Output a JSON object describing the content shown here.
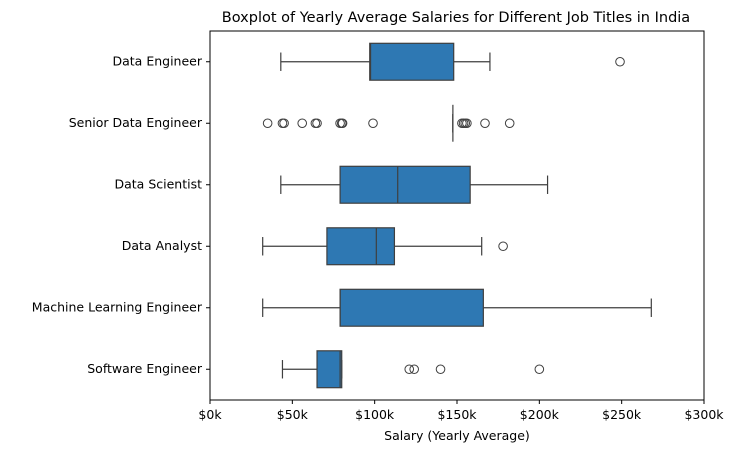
{
  "chart_data": {
    "type": "boxplot",
    "orientation": "horizontal",
    "title": "Boxplot of Yearly Average Salaries for Different Job Titles in India",
    "xlabel": "Salary (Yearly Average)",
    "ylabel": "",
    "xlim": [
      0,
      300000
    ],
    "x_ticks": [
      0,
      50000,
      100000,
      150000,
      200000,
      250000,
      300000
    ],
    "x_tick_labels": [
      "$0k",
      "$50k",
      "$100k",
      "$150k",
      "$200k",
      "$250k",
      "$300k"
    ],
    "grid": false,
    "box_color": "#2e78b3",
    "line_color": "#3f3f3f",
    "categories": [
      "Data Engineer",
      "Senior Data Engineer",
      "Data Scientist",
      "Data Analyst",
      "Machine Learning Engineer",
      "Software Engineer"
    ],
    "boxes": [
      {
        "category": "Data Engineer",
        "whisker_low": 43000,
        "q1": 97000,
        "median": 97500,
        "q3": 148000,
        "whisker_high": 170000,
        "outliers": [
          249000
        ]
      },
      {
        "category": "Senior Data Engineer",
        "whisker_low": 147500,
        "q1": 147500,
        "median": 147500,
        "q3": 147500,
        "whisker_high": 147500,
        "outliers": [
          35000,
          44000,
          45000,
          56000,
          64000,
          65000,
          79000,
          80000,
          80500,
          99000,
          153000,
          154000,
          155000,
          156000,
          167000,
          182000
        ]
      },
      {
        "category": "Data Scientist",
        "whisker_low": 43000,
        "q1": 79000,
        "median": 114000,
        "q3": 158000,
        "whisker_high": 205000,
        "outliers": []
      },
      {
        "category": "Data Analyst",
        "whisker_low": 32000,
        "q1": 71000,
        "median": 101000,
        "q3": 112000,
        "whisker_high": 165000,
        "outliers": [
          178000
        ]
      },
      {
        "category": "Machine Learning Engineer",
        "whisker_low": 32000,
        "q1": 79000,
        "median": 79000,
        "q3": 166000,
        "whisker_high": 268000,
        "outliers": []
      },
      {
        "category": "Software Engineer",
        "whisker_low": 44000,
        "q1": 65000,
        "median": 79000,
        "q3": 80000,
        "whisker_high": 80000,
        "outliers": [
          121000,
          124000,
          140000,
          200000
        ]
      }
    ]
  }
}
